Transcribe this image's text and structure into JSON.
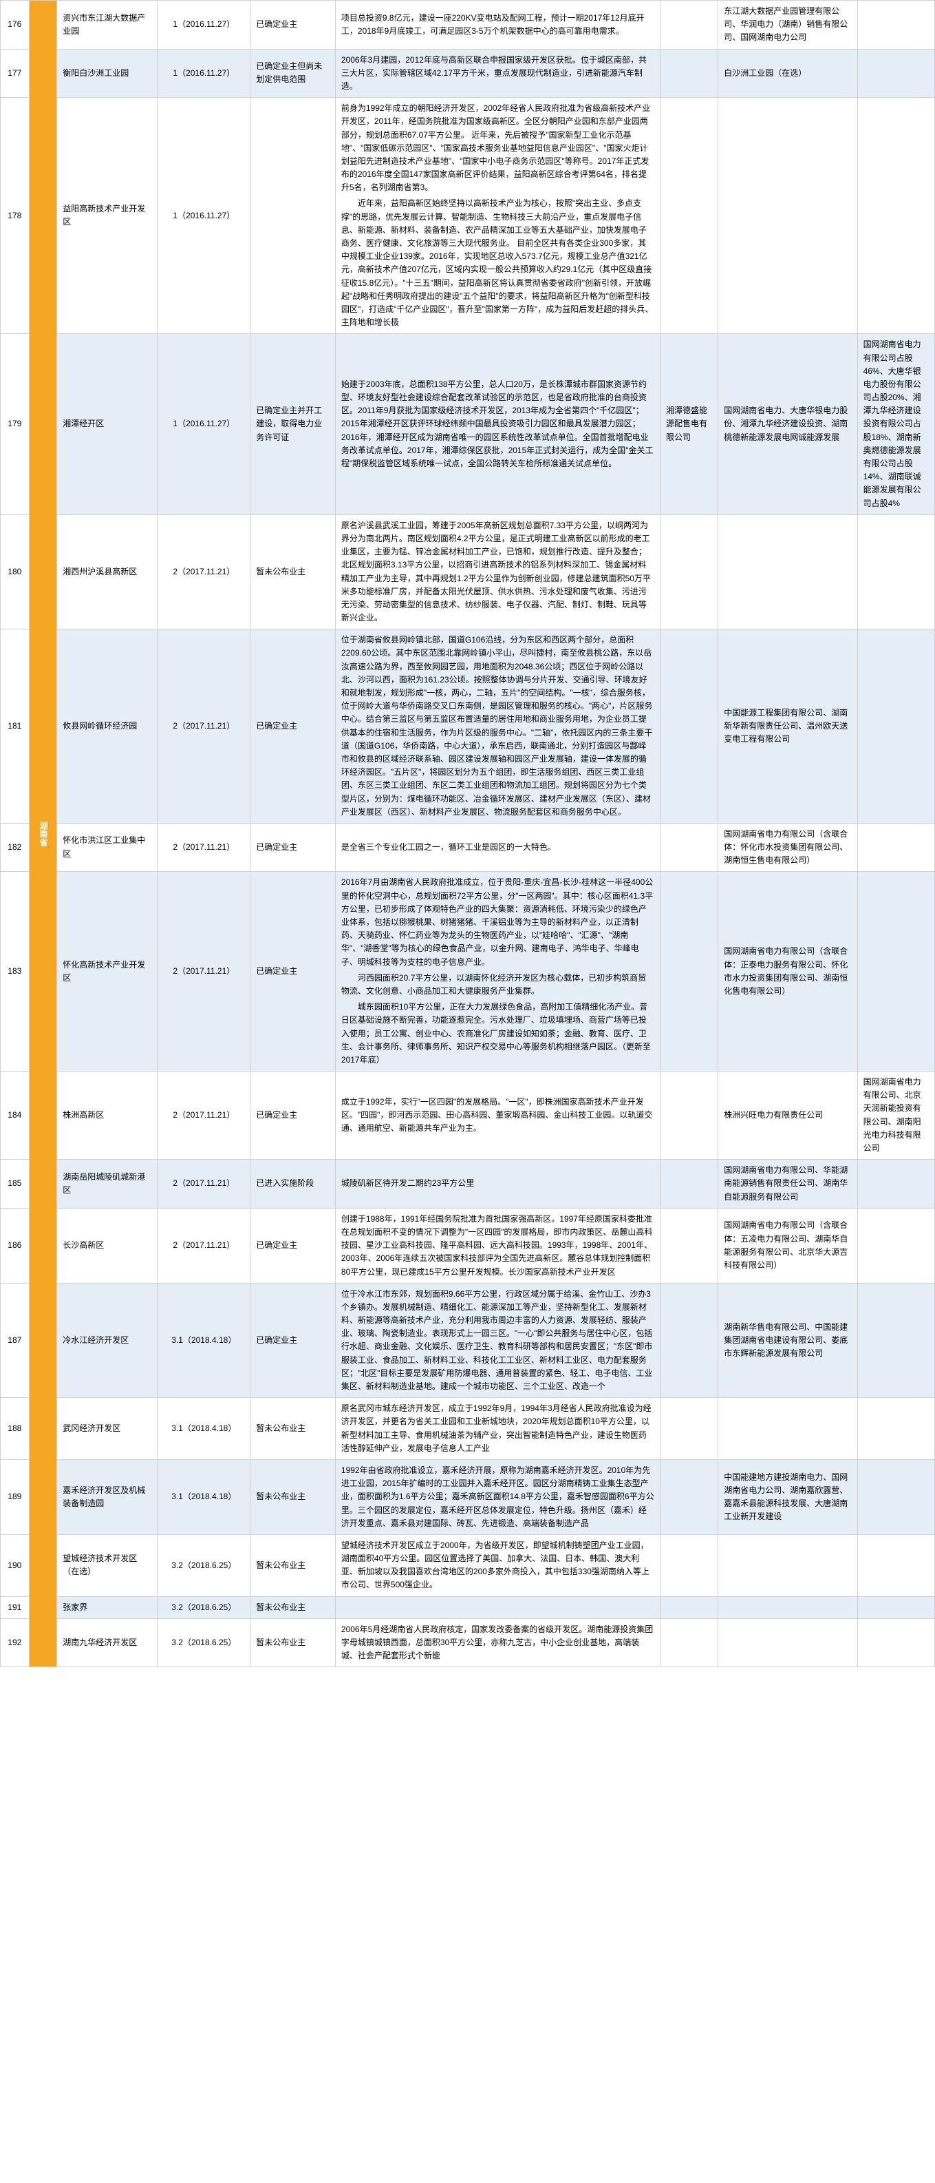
{
  "province": {
    "name": "湖南省",
    "bgcolor": "#f5a623"
  },
  "colors": {
    "even": "#e5eef7",
    "odd": "#ffffff",
    "border": "#d0d0d0"
  },
  "rows": [
    {
      "idx": "176",
      "name": "资兴市东江湖大数据产业园",
      "batch": "1（2016.11.27）",
      "status": "已确定业主",
      "desc": "项目总投资9.8亿元，建设一座220KV变电站及配网工程，预计一期2017年12月底开工，2018年9月底竣工，可满足园区3-5万个机架数据中心的高可靠用电需求。",
      "supply": "",
      "company": "东江湖大数据产业园管理有限公司、华润电力（湖南）销售有限公司、国网湖南电力公司",
      "note": "",
      "even": false
    },
    {
      "idx": "177",
      "name": "衡阳白沙洲工业园",
      "batch": "1（2016.11.27）",
      "status": "已确定业主但尚未划定供电范围",
      "desc": "2006年3月建园，2012年底与高新区联合申报国家级开发区获批。位于城区南部，共三大片区，实际管辖区域42.17平方千米，重点发展现代制造业，引进新能源汽车制造。",
      "supply": "",
      "company": "白沙洲工业园（在选）",
      "note": "",
      "even": true
    },
    {
      "idx": "178",
      "name": "益阳高新技术产业开发区",
      "batch": "1（2016.11.27）",
      "status": "",
      "desc": "前身为1992年成立的朝阳经济开发区，2002年经省人民政府批准为省级高新技术产业开发区，2011年，经国务院批准为国家级高新区。全区分朝阳产业园和东部产业园两部分，规划总面积67.07平方公里。 近年来，先后被授予\"国家新型工业化示范基地\"、\"国家低碳示范园区\"、\"国家高技术服务业基地益阳信息产业园区\"、\"国家火炬计划益阳先进制造技术产业基地\"、\"国家中小电子商务示范园区\"等称号。2017年正式发布的2016年度全国147家国家高新区评价结果，益阳高新区综合考评第64名，排名提升5名，名列湖南省第3。",
      "desc2": "近年来，益阳高新区始终坚持以高新技术产业为核心，按照\"突出主业、多点支撑\"的思路，优先发展云计算、智能制造、生物科技三大前沿产业，重点发展电子信息、新能源、新材料、装备制造、农产品精深加工业等五大基础产业，加快发展电子商务、医疗健康、文化旅游等三大现代服务业。 目前全区共有各类企业300多家，其中规模工业企业139家。2016年，实现地区总收入573.7亿元，规模工业总产值321亿元，高新技术产值207亿元，区域内实现一般公共预算收入约29.1亿元（其中区级直接征收15.8亿元）。\"十三五\"期间，益阳高新区将认真贯彻省委省政府\"创新引领，开放崛起\"战略和任秀明政府提出的建设\"五个益阳\"的要求，将益阳高新区升格为\"创新型科技园区\"，打造成\"千亿产业园区\"，晋升至\"国家第一方阵\"，成为益阳后发赶超的排头兵、主阵地和增长极",
      "supply": "",
      "company": "",
      "note": "",
      "even": false
    },
    {
      "idx": "179",
      "name": "湘潭经开区",
      "batch": "1（2016.11.27）",
      "status": "已确定业主并开工建设，取得电力业务许可证",
      "desc": "始建于2003年底，总面积138平方公里，总人口20万，是长株潭城市群国家资源节约型、环境友好型社会建设综合配套改革试验区的示范区，也是省政府批准的台商投资区。2011年9月获批为国家级经济技术开发区，2013年成为全省第四个\"千亿园区\"；2015年湘潭经开区获评环球经纬频中国最具投资吸引力园区和最具发展潜力园区；2016年，湘潭经开区成为湖南省唯一的园区系统性改革试点单位。全国首批增配电业务改革试点单位。2017年，湘潭综保区获批，2015年正式封关运行，成为全国\"金关工程\"期保税监管区域系统唯一试点，全国公路转关车检所标准通关试点单位。",
      "supply": "湘潭德盛能源配售电有限公司",
      "company": "国网湖南省电力、大唐华银电力股份、湘潭九华经济建设投资、湖南桃德新能源发展电网诚能源发展",
      "note": "国网湖南省电力有限公司占股46%、大唐华银电力股份有限公司占股20%、湘潭九华经济建设投资有限公司占股18%、湖南新奥燃德能源发展有限公司占股14%、湖南联诚能源发展有限公司占股4%",
      "even": true
    },
    {
      "idx": "180",
      "name": "湘西州沪溪县高新区",
      "batch": "2（2017.11.21）",
      "status": "暂未公布业主",
      "desc": "原名沪溪县武溪工业园，筹建于2005年高新区规划总面积7.33平方公里，以峒两河为界分为南北两片。南区规划面积4.2平方公里，是正式明建工业高新区以前形成的老工业集区，主要为锰、锌冶金属材料加工产业，已饱和，规划推行改造、提升及整合；北区规划面积3.13平方公里，以招商引进高新技术的铝系列材料深加工、锡金属材料精加工产业为主导，其中再规划1.2平方公里作为创新创业园，修建总建筑面积50万平米多功能标准厂房，并配备太阳光伏屋顶、供水供热、污水处理和废气收集、污进污无污染、劳动密集型的信息技术、纺纱服装、电子仪器、汽配、制灯、制鞋、玩具等新兴企业。",
      "supply": "",
      "company": "",
      "note": "",
      "even": false
    },
    {
      "idx": "181",
      "name": "攸县网岭循环经济园",
      "batch": "2（2017.11.21）",
      "status": "已确定业主",
      "desc": "位于湖南省攸县网岭镇北部，国道G106沿线，分为东区和西区两个部分，总面积2209.60公顷。其中东区范围北靠网岭镇小平山，尽叫捷村，南至攸县桃公路，东以岳汝高速公路为界，西至攸网园艺园，用地面积为2048.36公顷；西区位于网岭公路以北、沙河以西，面积为161.23公顷。按照整体协调与分片开发、交通引导、环境友好和就地制发，规划形成\"一核，两心，二轴，五片\"的空间结构。\"一核\"，综合服务核，位于网岭大道与华侨南路交叉口东南侧，是园区管理和服务的核心。\"两心\"，片区服务中心。结合第三监区与第五监区布置适量的居住用地和商业服务用地，为企业员工提供基本的住宿和生活服务，作为片区级的服务中心。\"二轴\"，依托园区内的三条主要干道（国道G106，华侨南路，中心大道），承东启西，联南通北，分别打造园区与酃峄市和攸县的区域经济联系轴、园区建设发展轴和园区产业发展轴，建设一体发展的循环经济园区。\"五片区\"，将园区划分为五个组团，即生活服务组团、西区三类工业组团、东区三类工业组团、东区二类工业组团和物流加工组团。规划将园区分为七个类型片区，分别为：煤电循环功能区、冶金循环发展区、建材产业发展区（东区）、建材产业发展区（西区）、新材料产业发展区、物流服务配套区和商务服务中心区。",
      "supply": "",
      "company": "中国能源工程集团有限公司、湖南新华新有限责任公司、温州欧天送变电工程有限公司",
      "note": "",
      "even": true
    },
    {
      "idx": "182",
      "name": "怀化市洪江区工业集中区",
      "batch": "2（2017.11.21）",
      "status": "已确定业主",
      "desc": "是全省三个专业化工园之一，循环工业是园区的一大特色。",
      "supply": "",
      "company": "国网湖南省电力有限公司（含联合体：怀化市水投资集团有限公司、湖南恒生售电有限公司）",
      "note": "",
      "even": false
    },
    {
      "idx": "183",
      "name": "怀化高新技术产业开发区",
      "batch": "2（2017.11.21）",
      "status": "已确定业主",
      "desc": "2016年7月由湖南省人民政府批准成立，位于贵阳-重庆-宜昌-长沙-桂林这一半径400公里的怀化空洞中心，总规划面积72平方公里，分\"一区两园\"。其中：核心区面积41.3平方公里，已初步形成了体观特色产业的四大集聚：资源消耗低、环境污染少的绿色产业体系，包括以猕猴桃果、树猪猪猪、千溪铝业等为主导的新材料产业，以正清制药、天骑药业、怀仁药业等为龙头的生物医药产业，以\"娃哈哈\"、\"汇源\"、\"湖南华\"、\"湖香堂\"等为核心的绿色食品产业，以金升网、建南电子、鸿华电子、华峰电子、明城科技等为支柱的电子信息产业。",
      "desc2": "河西园面积20.7平方公里，以湖南怀化经济开发区为核心载体，已初步构筑商贸物流、文化创意、小商品加工和大健康服务产业集群。",
      "desc3": "城东园面积10平方公里，正在大力发展绿色食品，高附加工值精细化汤产业。昔日区基础设施不断完善，功能逐惹完全。污水处理厂、垃圾填埋场、商营广场等已投入使用；员工公寓、创业中心、农商准化厂房建设如知如荼；金融、教育、医疗、卫生、会计事务所、律师事务所、知识产权交易中心等服务机构相继落户园区。（更新至2017年底）",
      "supply": "",
      "company": "国网湖南省电力有限公司（含联合体：正泰电力服务有限公司、怀化市水力投资集团有限公司、湖南恒化售电有限公司）",
      "note": "",
      "even": true
    },
    {
      "idx": "184",
      "name": "株洲高新区",
      "batch": "2（2017.11.21）",
      "status": "已确定业主",
      "desc": "成立于1992年，实行\"一区四园\"的发展格局。\"一区\"，即株洲国家高新技术产业开发区。\"四园\"，即河西示范园、田心高科园、董家塅高科园、金山科技工业园。以轨道交通、通用航空、新能源共车产业为主。",
      "supply": "",
      "company": "株洲兴旺电力有限责任公司",
      "note": "国网湖南省电力有限公司、北京天润新能投资有限公司、湖南阳光电力科技有限公司",
      "even": false
    },
    {
      "idx": "185",
      "name": "湖南岳阳城陵矶城新港区",
      "batch": "2（2017.11.21）",
      "status": "已进入实施阶段",
      "desc": "城陵矶新区待开发二期约23平方公里",
      "supply": "",
      "company": "国网湖南省电力有限公司、华能湖南能源销售有限责任公司、湖南华自能源服务有限公司",
      "note": "",
      "even": true
    },
    {
      "idx": "186",
      "name": "长沙高新区",
      "batch": "2（2017.11.21）",
      "status": "已确定业主",
      "desc": "创建于1988年，1991年经国务院批准为首批国家强高新区。1997年经原国家科委批准在总规划面积不变的情况下调整为\"一区四园\"的发展格局，即市内政策区、岳麓山高科技园、星沙工业高科技园、隆平高科园、远大高科技园。1993年，1998年、2001年、2003年、2006年连续五次被国家科技部评为全国先进高新区。麓谷总体规划控制面积80平方公里，现已建成15平方公里开发规模。长沙国家高新技术产业开发区",
      "supply": "",
      "company": "国网湖南省电力有限公司（含联合体：五凌电力有限公司、湖南华自能源服务有限公司、北京华大源吉科技有限公司）",
      "note": "",
      "even": false
    },
    {
      "idx": "187",
      "name": "冷水江经济开发区",
      "batch": "3.1（2018.4.18）",
      "status": "已确定业主",
      "desc": "位于冷水江市东郊，规划面积9.66平方公里，行政区域分属于给溪、金竹山工、沙办3个乡镇办。发展机械制造、精细化工、能源深加工等产业，坚持新型化工、发展新材料、新能源等高新技术产业，充分利用我市周边丰富的人力资源、发展轻纺、服装产业、玻璃、陶瓷制造业。表现形式上一园三区。\"一心\"即公共服务与居住中心区，包括行水超、商业金融、文化娱乐、医疗卫生、教育科研等部构和居民安置区；\"东区\"即市服装工业、食品加工、新材料工业、科技化工工业区、新材料工业区、电力配套服务区；\"北区\"目标主要是发展矿用防爆电器、通用普装置的紧色、轻工、电子电信、工业集区、新材料制造业基地。建成一个城市功能区、三个工业区、改造一个",
      "supply": "",
      "company": "湖南新华售电有限公司、中国能建集团湖南省电建设有限公司、娄底市东辉新能源发展有限公司",
      "note": "",
      "even": true
    },
    {
      "idx": "188",
      "name": "武冈经济开发区",
      "batch": "3.1（2018.4.18）",
      "status": "暂未公布业主",
      "desc": "原名武冈市城东经济开发区，成立于1992年9月，1994年3月经省人民政府批准设为经济开发区，并更名为省关工业园和工业新城地块，2020年规划总面积10平方公里，以新型材料加工主导、食用机械油茶为辅产业，突出智能制造特色产业，建设生物医药活性醇延伸产业，发展电子信息人工产业",
      "supply": "",
      "company": "",
      "note": "",
      "even": false
    },
    {
      "idx": "189",
      "name": "嘉禾经济开发区及机械装备制造园",
      "batch": "3.1（2018.4.18）",
      "status": "暂未公布业主",
      "desc": "1992年由省政府批准设立，嘉禾经济开展，原称为湖南嘉禾经济开发区。2010年为先进工业园，2015年扩编时的工业园并入嘉禾经开区。园区分湖南精铸工业集生态型产业，面积面积为1.6平方公里；嘉禾高新区面积14.8平方公里，嘉禾智感园面积6平方公里。三个园区的发展定位，嘉禾经开区总体发展定位，特色升级。扬州区（嘉禾）经济开发重点、嘉禾县对建国际、砖瓦、先进锻造、高端装备制造产品",
      "supply": "",
      "company": "中国能建地方建投湖南电力、国网湖南省电力公司、湖南嘉欣露营、嘉嘉禾县能源科技发展、大唐湖南工业新开发建设",
      "note": "",
      "even": true
    },
    {
      "idx": "190",
      "name": "望城经济技术开发区（在选）",
      "batch": "3.2（2018.6.25）",
      "status": "暂未公布业主",
      "desc": "望城经济技术开发区成立于2000年，为省级开发区，即望城机制铸塑团产业工业园，湖南面积40平方公里。园区位置选择了美国、加拿大、法国、日本、韩国、澳大利亚、新加坡以及我国喜欢台湾地区的200多家外商投入，其中包括330强湖南纳入等上市公司、世界500强企业。",
      "supply": "",
      "company": "",
      "note": "",
      "even": false
    },
    {
      "idx": "191",
      "name": "张家界",
      "batch": "3.2（2018.6.25）",
      "status": "暂未公布业主",
      "desc": "",
      "supply": "",
      "company": "",
      "note": "",
      "even": true
    },
    {
      "idx": "192",
      "name": "湖南九华经济开发区",
      "batch": "3.2（2018.6.25）",
      "status": "暂未公布业主",
      "desc": "2006年5月经湖南省人民政府核定，国家发改委备案的省级开发区。湖南能源投资集团字母城镇城镇西面，总面积30平方公里，亦称九芝古，中小企业创业基地，高端装城、社会产配套形式个新能",
      "supply": "",
      "company": "",
      "note": "",
      "even": false
    }
  ]
}
